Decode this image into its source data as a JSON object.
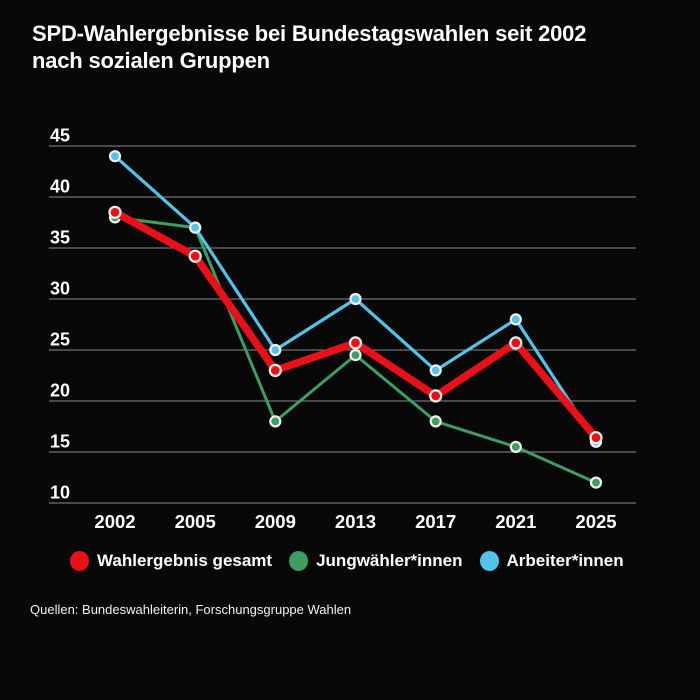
{
  "header": {
    "title_lines": [
      "SPD-Wahlergebnisse bei Bundestagswahlen seit 2002",
      "nach sozialen Gruppen"
    ]
  },
  "footer": {
    "source": "Quellen: Bundeswahleiterin, Forschungsgruppe Wahlen"
  },
  "colors": {
    "background": "#080808",
    "text": "#ffffff",
    "grid": "#8c8c8c",
    "marker_ring": "#f4f0ec",
    "total": "#e8111a",
    "young": "#3d9d62",
    "workers": "#54c3e9"
  },
  "chart_data": {
    "type": "line",
    "title": "SPD-Wahlergebnisse bei Bundestagswahlen seit 2002 nach sozialen Gruppen",
    "xlabel": "",
    "ylabel": "",
    "categories": [
      "2002",
      "2005",
      "2009",
      "2013",
      "2017",
      "2021",
      "2025"
    ],
    "series": [
      {
        "name": "Wahlergebnis gesamt",
        "color": "#e8111a",
        "line_width": 7.5,
        "marker_radius": 5.5,
        "values": [
          38.5,
          34.2,
          23,
          25.7,
          20.5,
          25.7,
          16.4
        ]
      },
      {
        "name": "Jungwähler*innen",
        "color": "#3d9d62",
        "line_width": 3,
        "marker_radius": 5,
        "values": [
          38,
          37,
          18,
          24.5,
          18,
          15.5,
          12
        ]
      },
      {
        "name": "Arbeiter*innen",
        "color": "#54c3e9",
        "line_width": 3.2,
        "marker_radius": 5,
        "values": [
          44,
          37,
          25,
          30,
          23,
          28,
          16
        ]
      }
    ],
    "ylim": [
      10,
      45
    ],
    "yticks": [
      45,
      40,
      35,
      30,
      25,
      20,
      15,
      10
    ],
    "grid": true,
    "legend_position": "bottom"
  }
}
